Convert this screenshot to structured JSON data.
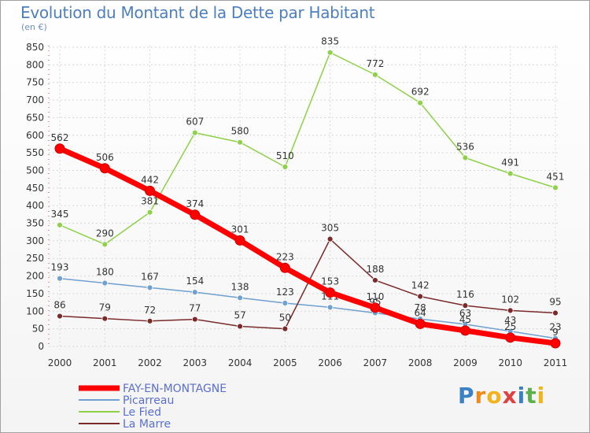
{
  "chart_data": {
    "type": "line",
    "title": "Evolution du Montant de la Dette par Habitant",
    "subtitle": "(en €)",
    "xlabel": "",
    "ylabel": "",
    "ylim": [
      0,
      850
    ],
    "yticks": [
      0,
      50,
      100,
      150,
      200,
      250,
      300,
      350,
      400,
      450,
      500,
      550,
      600,
      650,
      700,
      750,
      800,
      850
    ],
    "x": [
      "2000",
      "2001",
      "2002",
      "2003",
      "2004",
      "2005",
      "2006",
      "2007",
      "2008",
      "2009",
      "2010",
      "2011"
    ],
    "grid": true,
    "legend_position": "bottom-left",
    "series": [
      {
        "name": "Le Fied",
        "color": "#8fd14a",
        "values": [
          345,
          290,
          381,
          607,
          580,
          510,
          835,
          772,
          692,
          536,
          491,
          451
        ]
      },
      {
        "name": "Picarreau",
        "color": "#6fa0d0",
        "values": [
          193,
          180,
          167,
          154,
          138,
          123,
          111,
          95,
          78,
          63,
          43,
          23
        ]
      },
      {
        "name": "La Marre",
        "color": "#7a2a2a",
        "values": [
          86,
          79,
          72,
          77,
          57,
          50,
          305,
          188,
          142,
          116,
          102,
          95
        ]
      },
      {
        "name": "FAY-EN-MONTAGNE",
        "color": "#ff0000",
        "values": [
          562,
          506,
          442,
          374,
          301,
          223,
          153,
          110,
          64,
          45,
          25,
          9
        ]
      }
    ],
    "legend_order": [
      "FAY-EN-MONTAGNE",
      "Picarreau",
      "Le Fied",
      "La Marre"
    ]
  },
  "brand": {
    "letters": [
      "P",
      "r",
      "o",
      "x",
      "i",
      "t",
      "i"
    ],
    "colors": [
      "#3b82c4",
      "#f08a1c",
      "#f2b31c",
      "#e04040",
      "#3b82c4",
      "#5ab04a",
      "#f2b31c"
    ]
  }
}
